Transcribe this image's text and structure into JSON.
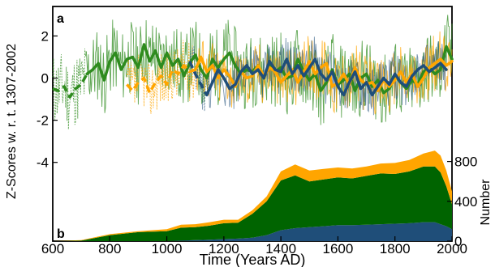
{
  "figure": {
    "panel_a_label": "a",
    "panel_b_label": "b",
    "xlabel": "Time (Years AD)",
    "ylabel_left": "Z-Scores w. r. t. 1307-2002",
    "ylabel_right": "Number"
  },
  "colors": {
    "green": "#2e8b1e",
    "dark_green": "#006400",
    "orange": "#ffa500",
    "blue": "#1f4e79"
  },
  "chart_data": [
    {
      "panel": "a",
      "type": "line",
      "xlabel": "Time (Years AD)",
      "ylabel": "Z-Scores w. r. t. 1307-2002",
      "xlim": [
        600,
        2000
      ],
      "ylim": [
        -6.2,
        3.4
      ],
      "xticks": [
        600,
        800,
        1000,
        1200,
        1400,
        1600,
        1800,
        2000
      ],
      "yticks": [
        -4,
        -2,
        0,
        2
      ],
      "series": [
        {
          "color": "green",
          "style": "thick smoothed; dashed before 720",
          "x": [
            600,
            620,
            640,
            660,
            680,
            700,
            720,
            740,
            760,
            780,
            800,
            820,
            840,
            860,
            880,
            900,
            920,
            940,
            960,
            980,
            1000,
            1020,
            1040,
            1060,
            1080,
            1100,
            1120,
            1140,
            1160,
            1180,
            1200,
            1220,
            1240,
            1260,
            1280,
            1300,
            1320,
            1340,
            1360,
            1380,
            1400,
            1420,
            1440,
            1460,
            1480,
            1500,
            1520,
            1540,
            1560,
            1580,
            1600,
            1620,
            1640,
            1660,
            1680,
            1700,
            1720,
            1740,
            1760,
            1780,
            1800,
            1820,
            1840,
            1860,
            1880,
            1900,
            1920,
            1940,
            1960,
            1980,
            2000
          ],
          "y": [
            -0.5,
            -0.6,
            -0.4,
            -0.9,
            -0.5,
            -0.3,
            0.2,
            0.4,
            0.7,
            -0.1,
            0.8,
            1.2,
            0.4,
            0.9,
            1.0,
            0.5,
            1.6,
            0.8,
            1.3,
            0.5,
            1.2,
            0.6,
            0.9,
            0.1,
            0.7,
            1.1,
            0.4,
            0.0,
            0.9,
            0.5,
            0.9,
            1.2,
            0.6,
            0.2,
            0.4,
            0.3,
            0.6,
            0.0,
            0.7,
            0.3,
            0.5,
            0.0,
            0.1,
            0.9,
            0.3,
            -0.1,
            0.2,
            -0.6,
            -0.2,
            0.4,
            -0.3,
            -0.1,
            0.2,
            -0.6,
            0.0,
            0.2,
            -0.4,
            -0.1,
            -0.7,
            -0.5,
            0.1,
            -0.2,
            -0.5,
            -0.1,
            -0.3,
            0.3,
            0.5,
            0.2,
            0.4,
            1.5,
            0.9
          ]
        },
        {
          "color": "orange",
          "style": "thick smoothed; dashed before 1100",
          "x": [
            860,
            880,
            900,
            920,
            940,
            960,
            980,
            1000,
            1020,
            1040,
            1060,
            1080,
            1100,
            1120,
            1140,
            1160,
            1180,
            1200,
            1220,
            1240,
            1260,
            1280,
            1300,
            1320,
            1340,
            1360,
            1380,
            1400,
            1420,
            1440,
            1460,
            1480,
            1500,
            1520,
            1540,
            1560,
            1580,
            1600,
            1620,
            1640,
            1660,
            1680,
            1700,
            1720,
            1740,
            1760,
            1780,
            1800,
            1820,
            1840,
            1860,
            1880,
            1900,
            1920,
            1940,
            1960,
            1980,
            2000
          ],
          "y": [
            -0.3,
            -0.6,
            -0.2,
            0.0,
            -0.7,
            -0.2,
            0.1,
            -0.3,
            0.4,
            0.2,
            0.6,
            0.3,
            0.4,
            1.0,
            0.3,
            0.6,
            0.0,
            0.4,
            0.1,
            -0.4,
            0.3,
            0.0,
            0.1,
            0.6,
            0.1,
            0.5,
            0.3,
            -0.2,
            0.1,
            0.4,
            -0.2,
            0.3,
            0.8,
            0.2,
            0.5,
            0.7,
            -0.4,
            -0.2,
            0.2,
            -0.3,
            0.5,
            -0.1,
            -0.3,
            -0.2,
            -0.6,
            -0.1,
            -0.4,
            -0.1,
            0.3,
            -0.2,
            0.2,
            -0.4,
            0.0,
            0.5,
            0.7,
            0.9,
            0.6,
            0.8
          ]
        },
        {
          "color": "blue",
          "style": "thick smoothed; dashed before 1150",
          "x": [
            1080,
            1100,
            1120,
            1140,
            1160,
            1180,
            1200,
            1220,
            1240,
            1260,
            1280,
            1300,
            1320,
            1340,
            1360,
            1380,
            1400,
            1420,
            1440,
            1460,
            1480,
            1500,
            1520,
            1540,
            1560,
            1580,
            1600,
            1620,
            1640,
            1660,
            1680,
            1700,
            1720,
            1740,
            1760,
            1780,
            1800,
            1820,
            1840,
            1860,
            1880,
            1900,
            1920,
            1940,
            1960,
            1980
          ],
          "y": [
            0.8,
            0.2,
            -0.3,
            -0.8,
            -0.2,
            0.4,
            0.0,
            -0.5,
            -0.3,
            0.3,
            0.6,
            0.2,
            0.4,
            0.0,
            0.8,
            0.4,
            0.3,
            0.9,
            0.2,
            0.6,
            0.1,
            0.5,
            0.9,
            0.2,
            -0.1,
            0.3,
            -0.4,
            -0.8,
            -0.2,
            0.3,
            -0.5,
            -0.2,
            -0.8,
            -0.4,
            0.0,
            -0.3,
            0.2,
            -0.2,
            -0.4,
            0.1,
            0.4,
            0.6,
            0.3,
            0.5,
            0.7,
            0.4
          ]
        }
      ]
    },
    {
      "panel": "b",
      "type": "area",
      "xlabel": "Time (Years AD)",
      "ylabel": "Number",
      "xlim": [
        600,
        2000
      ],
      "ylim": [
        0,
        1000
      ],
      "yticks": [
        0,
        400,
        800
      ],
      "stacking": "stacked",
      "x": [
        600,
        700,
        800,
        900,
        1000,
        1050,
        1100,
        1150,
        1200,
        1250,
        1300,
        1350,
        1400,
        1450,
        1500,
        1550,
        1600,
        1650,
        1700,
        1750,
        1800,
        1850,
        1900,
        1940,
        1960,
        1980,
        2000
      ],
      "series": [
        {
          "color": "blue",
          "values": [
            0,
            0,
            0,
            0,
            0,
            5,
            10,
            15,
            20,
            25,
            35,
            60,
            110,
            130,
            140,
            150,
            160,
            160,
            165,
            170,
            175,
            180,
            190,
            190,
            170,
            150,
            120
          ]
        },
        {
          "color": "dark_green",
          "values": [
            0,
            5,
            60,
            90,
            100,
            130,
            130,
            140,
            160,
            160,
            240,
            340,
            500,
            530,
            460,
            470,
            480,
            470,
            490,
            510,
            500,
            520,
            560,
            560,
            520,
            400,
            250
          ]
        },
        {
          "color": "orange",
          "values": [
            0,
            5,
            10,
            10,
            20,
            30,
            30,
            35,
            35,
            30,
            35,
            50,
            90,
            110,
            110,
            105,
            100,
            100,
            95,
            100,
            110,
            115,
            130,
            160,
            170,
            160,
            130
          ]
        }
      ]
    }
  ]
}
